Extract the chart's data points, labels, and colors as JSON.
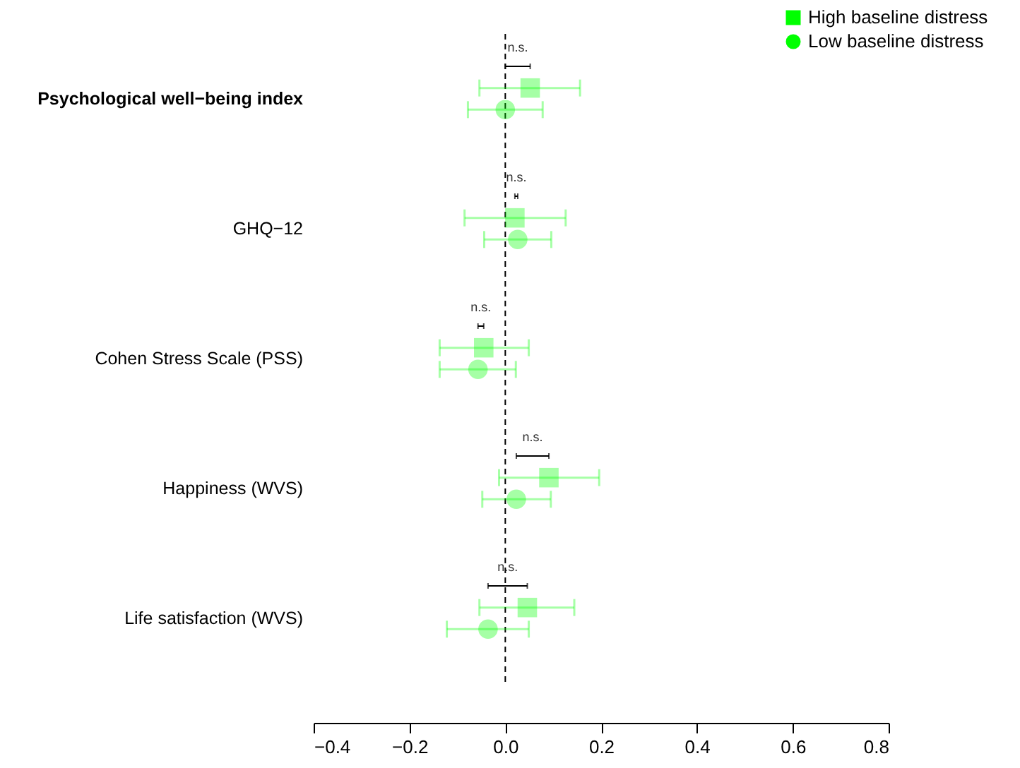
{
  "chart_data": {
    "type": "scatter",
    "orientation": "horizontal",
    "categories": [
      "Psychological well−being index",
      "GHQ−12",
      "Cohen Stress Scale (PSS)",
      "Happiness (WVS)",
      "Life satisfaction (WVS)"
    ],
    "series": [
      {
        "name": "High baseline distress",
        "color": "#00ff00",
        "marker": "square",
        "values": [
          0.052,
          0.02,
          -0.045,
          0.091,
          0.046
        ],
        "errors": [
          [
            -0.054,
            0.156
          ],
          [
            -0.085,
            0.126
          ],
          [
            -0.137,
            0.049
          ],
          [
            -0.013,
            0.196
          ],
          [
            -0.054,
            0.144
          ]
        ]
      },
      {
        "name": "Low baseline distress",
        "color": "#00ff00",
        "marker": "circle",
        "values": [
          0.0,
          0.026,
          -0.057,
          0.023,
          -0.036
        ],
        "errors": [
          [
            -0.078,
            0.078
          ],
          [
            -0.044,
            0.096
          ],
          [
            -0.137,
            0.022
          ],
          [
            -0.048,
            0.095
          ],
          [
            -0.122,
            0.049
          ]
        ]
      }
    ],
    "xlim": [
      -0.4,
      0.8
    ],
    "xticks": [
      -0.4,
      -0.2,
      {
        "value": 0,
        "label": "0.0"
      },
      0.2,
      0.4,
      0.6,
      0.8
    ],
    "ref_lines": [
      {
        "axis": "x",
        "value": 0,
        "line_style": "dashed",
        "color": "#000000"
      }
    ],
    "annotations": [
      "n.s.",
      "n.s.",
      "n.s.",
      "n.s.",
      "n.s."
    ],
    "legend": "top right",
    "grid": false
  }
}
